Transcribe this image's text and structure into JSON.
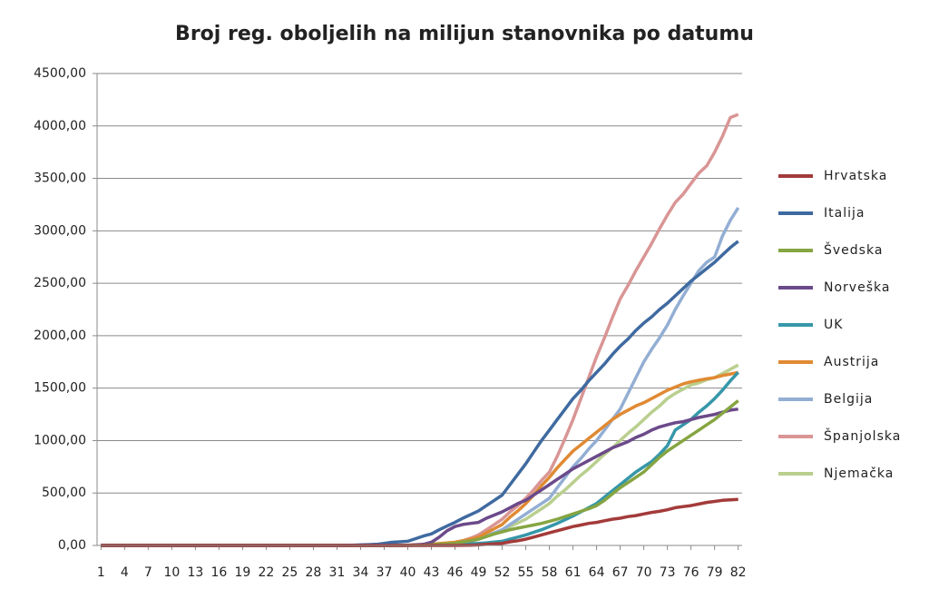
{
  "chart_data": {
    "type": "line",
    "title": "Broj reg. oboljelih na milijun stanovnika po datumu",
    "x": [
      1,
      2,
      3,
      4,
      5,
      6,
      7,
      8,
      9,
      10,
      11,
      12,
      13,
      14,
      15,
      16,
      17,
      18,
      19,
      20,
      21,
      22,
      23,
      24,
      25,
      26,
      27,
      28,
      29,
      30,
      31,
      32,
      33,
      34,
      35,
      36,
      37,
      38,
      39,
      40,
      41,
      42,
      43,
      44,
      45,
      46,
      47,
      48,
      49,
      50,
      51,
      52,
      53,
      54,
      55,
      56,
      57,
      58,
      59,
      60,
      61,
      62,
      63,
      64,
      65,
      66,
      67,
      68,
      69,
      70,
      71,
      72,
      73,
      74,
      75,
      76,
      77,
      78,
      79,
      80,
      81,
      82
    ],
    "xlim": [
      0.5,
      82.5
    ],
    "xticks": [
      1,
      4,
      7,
      10,
      13,
      16,
      19,
      22,
      25,
      28,
      31,
      34,
      37,
      40,
      43,
      46,
      49,
      52,
      55,
      58,
      61,
      64,
      67,
      70,
      73,
      76,
      79,
      82
    ],
    "ylim": [
      0,
      4500
    ],
    "yticks": [
      {
        "value": 0,
        "label": "0,00"
      },
      {
        "value": 500,
        "label": "500,00"
      },
      {
        "value": 1000,
        "label": "1000,00"
      },
      {
        "value": 1500,
        "label": "1500,00"
      },
      {
        "value": 2000,
        "label": "2000,00"
      },
      {
        "value": 2500,
        "label": "2500,00"
      },
      {
        "value": 3000,
        "label": "3000,00"
      },
      {
        "value": 3500,
        "label": "3500,00"
      },
      {
        "value": 4000,
        "label": "4000,00"
      },
      {
        "value": 4500,
        "label": "4500,00"
      }
    ],
    "grid": true,
    "legend": "right",
    "series": [
      {
        "name": "Hrvatska",
        "color": "#a33b3a",
        "values": [
          0,
          0,
          0,
          0,
          0,
          0,
          0,
          0,
          0,
          0,
          0,
          0,
          0,
          0,
          0,
          0,
          0,
          0,
          0,
          0,
          0,
          0,
          0,
          0,
          0,
          0,
          0,
          0,
          0,
          0,
          0,
          0,
          0,
          0,
          0,
          0,
          0,
          0,
          0,
          0,
          0,
          0,
          0,
          0,
          0,
          0,
          1,
          3,
          5,
          10,
          15,
          20,
          35,
          45,
          60,
          80,
          100,
          120,
          140,
          160,
          180,
          195,
          210,
          220,
          235,
          250,
          260,
          275,
          285,
          300,
          315,
          325,
          340,
          360,
          370,
          380,
          395,
          410,
          420,
          430,
          435,
          440
        ]
      },
      {
        "name": "Italija",
        "color": "#3f6aa0",
        "values": [
          0,
          0,
          0,
          0,
          0,
          0,
          0,
          0,
          0,
          0,
          0,
          0,
          0,
          0,
          0,
          0,
          0,
          0,
          0,
          0,
          0,
          0,
          0,
          0,
          0,
          0,
          0,
          0,
          0,
          0,
          0,
          0,
          2,
          5,
          8,
          10,
          20,
          30,
          35,
          40,
          65,
          90,
          110,
          150,
          185,
          220,
          260,
          295,
          330,
          380,
          430,
          480,
          580,
          680,
          780,
          890,
          1000,
          1100,
          1200,
          1300,
          1400,
          1480,
          1570,
          1650,
          1730,
          1820,
          1900,
          1970,
          2050,
          2120,
          2180,
          2250,
          2310,
          2380,
          2450,
          2520,
          2580,
          2640,
          2700,
          2770,
          2840,
          2900
        ]
      },
      {
        "name": "Švedska",
        "color": "#86a542",
        "values": [
          0,
          0,
          0,
          0,
          0,
          0,
          0,
          0,
          0,
          0,
          0,
          0,
          0,
          0,
          0,
          0,
          0,
          0,
          0,
          0,
          0,
          0,
          0,
          0,
          0,
          0,
          0,
          0,
          0,
          0,
          0,
          0,
          0,
          0,
          0,
          0,
          0,
          0,
          0,
          1,
          2,
          3,
          5,
          10,
          15,
          20,
          35,
          45,
          60,
          85,
          110,
          130,
          150,
          165,
          180,
          195,
          210,
          230,
          250,
          275,
          300,
          325,
          350,
          380,
          430,
          490,
          550,
          600,
          650,
          700,
          770,
          840,
          900,
          950,
          1000,
          1050,
          1100,
          1150,
          1200,
          1260,
          1320,
          1380
        ]
      },
      {
        "name": "Norveška",
        "color": "#6b4a8a",
        "values": [
          0,
          0,
          0,
          0,
          0,
          0,
          0,
          0,
          0,
          0,
          0,
          0,
          0,
          0,
          0,
          0,
          0,
          0,
          0,
          0,
          0,
          0,
          0,
          0,
          0,
          0,
          0,
          0,
          0,
          0,
          0,
          0,
          0,
          0,
          0,
          0,
          0,
          0,
          1,
          3,
          6,
          10,
          30,
          80,
          140,
          180,
          200,
          210,
          220,
          260,
          290,
          320,
          360,
          400,
          430,
          480,
          530,
          580,
          630,
          680,
          730,
          770,
          810,
          850,
          890,
          930,
          960,
          990,
          1030,
          1060,
          1100,
          1130,
          1150,
          1170,
          1180,
          1200,
          1220,
          1235,
          1250,
          1270,
          1290,
          1300
        ]
      },
      {
        "name": "UK",
        "color": "#3597a9",
        "values": [
          0,
          0,
          0,
          0,
          0,
          0,
          0,
          0,
          0,
          0,
          0,
          0,
          0,
          0,
          0,
          0,
          0,
          0,
          0,
          0,
          0,
          0,
          0,
          0,
          0,
          0,
          0,
          0,
          0,
          0,
          0,
          0,
          0,
          0,
          0,
          0,
          0,
          0,
          0,
          0,
          1,
          1,
          2,
          3,
          4,
          5,
          10,
          15,
          20,
          25,
          32,
          40,
          60,
          80,
          100,
          125,
          150,
          180,
          210,
          245,
          280,
          320,
          360,
          400,
          460,
          520,
          580,
          640,
          700,
          750,
          800,
          870,
          950,
          1100,
          1150,
          1200,
          1270,
          1330,
          1400,
          1480,
          1570,
          1650
        ]
      },
      {
        "name": "Austrija",
        "color": "#e08a33",
        "values": [
          0,
          0,
          0,
          0,
          0,
          0,
          0,
          0,
          0,
          0,
          0,
          0,
          0,
          0,
          0,
          0,
          0,
          0,
          0,
          0,
          0,
          0,
          0,
          0,
          0,
          0,
          0,
          0,
          0,
          0,
          0,
          0,
          0,
          0,
          0,
          0,
          0,
          1,
          2,
          3,
          5,
          8,
          12,
          18,
          24,
          30,
          45,
          60,
          80,
          120,
          160,
          200,
          270,
          330,
          400,
          480,
          570,
          650,
          740,
          820,
          900,
          960,
          1020,
          1080,
          1140,
          1200,
          1250,
          1290,
          1330,
          1360,
          1400,
          1440,
          1480,
          1510,
          1540,
          1560,
          1575,
          1590,
          1600,
          1620,
          1635,
          1650
        ]
      },
      {
        "name": "Belgija",
        "color": "#93aed3",
        "values": [
          0,
          0,
          0,
          0,
          0,
          0,
          0,
          0,
          0,
          0,
          0,
          0,
          0,
          0,
          0,
          0,
          0,
          0,
          0,
          0,
          0,
          0,
          0,
          0,
          0,
          0,
          0,
          0,
          0,
          0,
          0,
          0,
          0,
          0,
          0,
          0,
          0,
          0,
          0,
          1,
          2,
          3,
          4,
          6,
          8,
          10,
          25,
          40,
          60,
          90,
          120,
          150,
          200,
          250,
          300,
          350,
          400,
          450,
          550,
          650,
          750,
          830,
          920,
          1000,
          1100,
          1200,
          1300,
          1450,
          1600,
          1750,
          1870,
          1980,
          2100,
          2250,
          2380,
          2500,
          2620,
          2700,
          2750,
          2950,
          3100,
          3220
        ]
      },
      {
        "name": "Španjolska",
        "color": "#d99595",
        "values": [
          0,
          0,
          0,
          0,
          0,
          0,
          0,
          0,
          0,
          0,
          0,
          0,
          0,
          0,
          0,
          0,
          0,
          0,
          0,
          0,
          0,
          0,
          0,
          0,
          0,
          0,
          0,
          0,
          0,
          0,
          0,
          0,
          0,
          0,
          0,
          0,
          0,
          0,
          1,
          2,
          3,
          5,
          8,
          12,
          16,
          20,
          45,
          70,
          100,
          150,
          200,
          250,
          320,
          380,
          450,
          530,
          620,
          700,
          850,
          1020,
          1200,
          1400,
          1600,
          1800,
          1980,
          2170,
          2350,
          2480,
          2620,
          2750,
          2880,
          3020,
          3150,
          3270,
          3350,
          3450,
          3550,
          3620,
          3750,
          3900,
          4080,
          4110
        ]
      },
      {
        "name": "Njemačka",
        "color": "#b9cf8e",
        "values": [
          0,
          0,
          0,
          0,
          0,
          0,
          0,
          0,
          0,
          0,
          0,
          0,
          0,
          0,
          0,
          0,
          0,
          0,
          0,
          0,
          0,
          0,
          0,
          0,
          0,
          0,
          0,
          0,
          0,
          0,
          0,
          0,
          0,
          0,
          0,
          0,
          0,
          0,
          1,
          2,
          3,
          5,
          10,
          15,
          22,
          30,
          45,
          55,
          70,
          95,
          120,
          150,
          180,
          215,
          250,
          300,
          350,
          400,
          470,
          530,
          600,
          670,
          730,
          800,
          870,
          930,
          1000,
          1070,
          1130,
          1200,
          1270,
          1330,
          1400,
          1450,
          1490,
          1530,
          1550,
          1580,
          1600,
          1640,
          1680,
          1720
        ]
      }
    ]
  }
}
